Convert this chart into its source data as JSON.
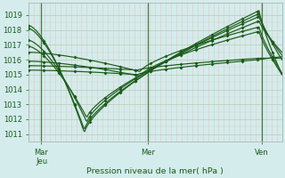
{
  "xlabel": "Pression niveau de la mer( hPa )",
  "ylim": [
    1010.5,
    1019.8
  ],
  "yticks": [
    1011,
    1012,
    1013,
    1014,
    1015,
    1016,
    1017,
    1018,
    1019
  ],
  "bg_color": "#d4ecec",
  "line_color": "#1a5c1a",
  "xtick_labels": [
    "Mar\nJeu",
    "Mer",
    "Ven"
  ],
  "xtick_positions": [
    0.05,
    0.47,
    0.92
  ],
  "curves": [
    [
      1018.3,
      1011.1,
      0.22,
      1019.3,
      0.91,
      1015.0
    ],
    [
      1018.1,
      1011.3,
      0.22,
      1019.1,
      0.91,
      1016.0
    ],
    [
      1017.3,
      1011.8,
      0.23,
      1018.9,
      0.91,
      1016.3
    ],
    [
      1016.9,
      1012.1,
      0.23,
      1018.6,
      0.91,
      1016.5
    ],
    [
      1016.5,
      1015.2,
      0.44,
      1018.2,
      0.91,
      1015.1
    ],
    [
      1015.9,
      1014.9,
      0.44,
      1017.9,
      0.91,
      1015.0
    ],
    [
      1015.6,
      1015.3,
      0.43,
      1016.1,
      0.91,
      1016.1
    ],
    [
      1015.3,
      1015.0,
      0.43,
      1016.0,
      0.91,
      1016.2
    ]
  ],
  "vlines": [
    0.05,
    0.47,
    0.92
  ],
  "grid_major_color": "#b8d4b8",
  "grid_minor_v_color": "#e8c4c4",
  "grid_minor_h_color": "#c8dcc8"
}
